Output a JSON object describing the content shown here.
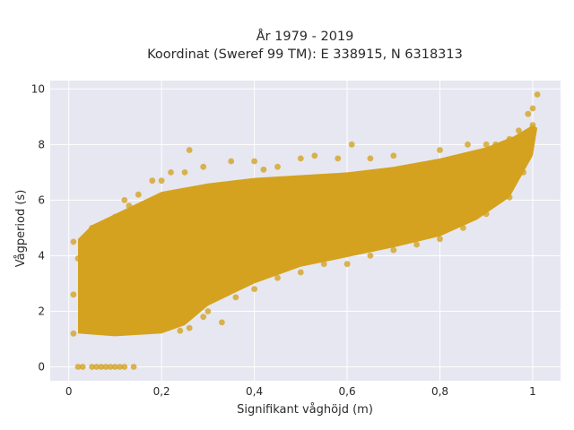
{
  "chart_data": {
    "type": "scatter",
    "title_lines": [
      "År 1979 - 2019",
      "Koordinat (Sweref 99 TM): E 338915, N 6318313"
    ],
    "xlabel": "Signifikant våghöjd (m)",
    "ylabel": "Vågperiod (s)",
    "xlim": [
      -0.04,
      1.06
    ],
    "ylim": [
      -0.5,
      10.3
    ],
    "xticks": [
      0,
      0.2,
      0.4,
      0.6,
      0.8,
      1
    ],
    "xtick_labels": [
      "0",
      "0,2",
      "0,4",
      "0,6",
      "0,8",
      "1"
    ],
    "yticks": [
      0,
      2,
      4,
      6,
      8,
      10
    ],
    "ytick_labels": [
      "0",
      "2",
      "4",
      "6",
      "8",
      "10"
    ],
    "grid": true,
    "marker_color": "#d4a21f",
    "background_color": "#e6e7f0",
    "density_envelope": {
      "upper": [
        [
          0.02,
          4.6
        ],
        [
          0.05,
          5.1
        ],
        [
          0.1,
          5.5
        ],
        [
          0.2,
          6.3
        ],
        [
          0.3,
          6.6
        ],
        [
          0.4,
          6.8
        ],
        [
          0.5,
          6.9
        ],
        [
          0.6,
          7.0
        ],
        [
          0.7,
          7.2
        ],
        [
          0.8,
          7.5
        ],
        [
          0.9,
          7.9
        ],
        [
          0.96,
          8.3
        ],
        [
          1.0,
          8.7
        ],
        [
          1.01,
          8.6
        ]
      ],
      "lower": [
        [
          0.02,
          1.2
        ],
        [
          0.1,
          1.1
        ],
        [
          0.2,
          1.2
        ],
        [
          0.25,
          1.5
        ],
        [
          0.3,
          2.2
        ],
        [
          0.35,
          2.6
        ],
        [
          0.4,
          3.0
        ],
        [
          0.5,
          3.6
        ],
        [
          0.6,
          3.95
        ],
        [
          0.7,
          4.3
        ],
        [
          0.8,
          4.7
        ],
        [
          0.88,
          5.3
        ],
        [
          0.95,
          6.1
        ],
        [
          1.0,
          7.6
        ]
      ]
    },
    "series": [
      {
        "values": [
          [
            0.02,
            0
          ],
          [
            0.03,
            0
          ],
          [
            0.05,
            0
          ],
          [
            0.06,
            0
          ],
          [
            0.07,
            0
          ],
          [
            0.08,
            0
          ],
          [
            0.09,
            0
          ],
          [
            0.1,
            0
          ],
          [
            0.11,
            0
          ],
          [
            0.12,
            0
          ],
          [
            0.14,
            0
          ],
          [
            0.01,
            4.5
          ],
          [
            0.05,
            5.0
          ],
          [
            0.08,
            5.2
          ],
          [
            0.1,
            5.4
          ],
          [
            0.12,
            6.0
          ],
          [
            0.13,
            5.8
          ],
          [
            0.15,
            6.2
          ],
          [
            0.18,
            6.7
          ],
          [
            0.2,
            6.7
          ],
          [
            0.22,
            7.0
          ],
          [
            0.25,
            7.0
          ],
          [
            0.26,
            7.8
          ],
          [
            0.29,
            7.2
          ],
          [
            0.35,
            7.4
          ],
          [
            0.4,
            7.4
          ],
          [
            0.42,
            7.1
          ],
          [
            0.45,
            7.2
          ],
          [
            0.5,
            7.5
          ],
          [
            0.53,
            7.6
          ],
          [
            0.58,
            7.5
          ],
          [
            0.61,
            8.0
          ],
          [
            0.65,
            7.5
          ],
          [
            0.7,
            7.6
          ],
          [
            0.8,
            7.8
          ],
          [
            0.86,
            8.0
          ],
          [
            0.9,
            8.0
          ],
          [
            0.92,
            8.0
          ],
          [
            0.95,
            8.2
          ],
          [
            0.97,
            8.5
          ],
          [
            0.99,
            9.1
          ],
          [
            1.0,
            9.3
          ],
          [
            1.01,
            9.8
          ],
          [
            1.0,
            8.7
          ],
          [
            0.16,
            1.6
          ],
          [
            0.2,
            1.5
          ],
          [
            0.22,
            1.5
          ],
          [
            0.24,
            1.3
          ],
          [
            0.26,
            1.4
          ],
          [
            0.29,
            1.8
          ],
          [
            0.33,
            1.6
          ],
          [
            0.3,
            2.0
          ],
          [
            0.36,
            2.5
          ],
          [
            0.4,
            2.8
          ],
          [
            0.45,
            3.2
          ],
          [
            0.5,
            3.4
          ],
          [
            0.55,
            3.7
          ],
          [
            0.6,
            3.7
          ],
          [
            0.65,
            4.0
          ],
          [
            0.7,
            4.2
          ],
          [
            0.75,
            4.4
          ],
          [
            0.8,
            4.6
          ],
          [
            0.85,
            5.0
          ],
          [
            0.9,
            5.5
          ],
          [
            0.95,
            6.1
          ],
          [
            0.98,
            7.0
          ],
          [
            0.01,
            2.6
          ],
          [
            0.01,
            1.2
          ],
          [
            0.02,
            3.9
          ]
        ]
      }
    ]
  }
}
